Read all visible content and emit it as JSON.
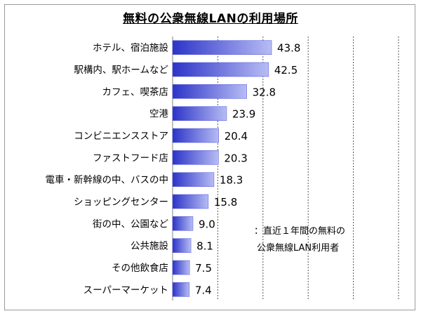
{
  "chart_data": {
    "type": "bar",
    "orientation": "horizontal",
    "title": "無料の公衆無線LANの利用場所",
    "categories": [
      "ホテル、宿泊施設",
      "駅構内、駅ホームなど",
      "カフェ、喫茶店",
      "空港",
      "コンビニエンスストア",
      "ファストフード店",
      "電車・新幹線の中、バスの中",
      "ショッピングセンター",
      "街の中、公園など",
      "公共施設",
      "その他飲食店",
      "スーパーマーケット"
    ],
    "values": [
      43.8,
      42.5,
      32.8,
      23.9,
      20.4,
      20.3,
      18.3,
      15.8,
      9.0,
      8.1,
      7.5,
      7.4
    ],
    "value_labels": [
      "43.8",
      "42.5",
      "32.8",
      "23.9",
      "20.4",
      "20.3",
      "18.3",
      "15.8",
      "9.0",
      "8.1",
      "7.5",
      "7.4"
    ],
    "xlim": [
      0,
      100
    ],
    "grid": true,
    "bar_color": "#4a52d8",
    "annotation": [
      "：直近１年間の無料の",
      "公衆無線LAN利用者"
    ]
  }
}
